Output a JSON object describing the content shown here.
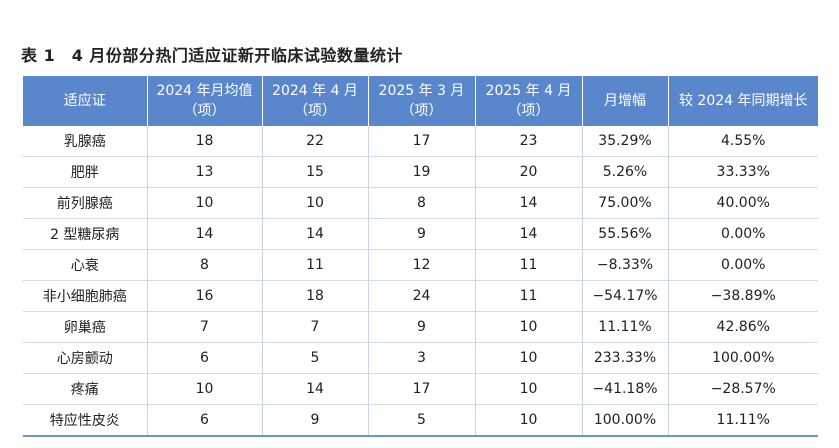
{
  "caption": "表 1　4 月份部分热门适应证新开临床试验数量统计",
  "table": {
    "headers": [
      {
        "line1": "适应证",
        "line2": ""
      },
      {
        "line1": "2024 年月均值",
        "line2": "（项）"
      },
      {
        "line1": "2024 年 4 月",
        "line2": "（项）"
      },
      {
        "line1": "2025 年 3 月",
        "line2": "（项）"
      },
      {
        "line1": "2025 年 4 月",
        "line2": "（项）"
      },
      {
        "line1": "月增幅",
        "line2": ""
      },
      {
        "line1": "较 2024 年同期增长",
        "line2": ""
      }
    ],
    "rows": [
      [
        "乳腺癌",
        "18",
        "22",
        "17",
        "23",
        "35.29%",
        "4.55%"
      ],
      [
        "肥胖",
        "13",
        "15",
        "19",
        "20",
        "5.26%",
        "33.33%"
      ],
      [
        "前列腺癌",
        "10",
        "10",
        "8",
        "14",
        "75.00%",
        "40.00%"
      ],
      [
        "2 型糖尿病",
        "14",
        "14",
        "9",
        "14",
        "55.56%",
        "0.00%"
      ],
      [
        "心衰",
        "8",
        "11",
        "12",
        "11",
        "−8.33%",
        "0.00%"
      ],
      [
        "非小细胞肺癌",
        "16",
        "18",
        "24",
        "11",
        "−54.17%",
        "−38.89%"
      ],
      [
        "卵巢癌",
        "7",
        "7",
        "9",
        "10",
        "11.11%",
        "42.86%"
      ],
      [
        "心房颤动",
        "6",
        "5",
        "3",
        "10",
        "233.33%",
        "100.00%"
      ],
      [
        "疼痛",
        "10",
        "14",
        "17",
        "10",
        "−41.18%",
        "−28.57%"
      ],
      [
        "特应性皮炎",
        "6",
        "9",
        "5",
        "10",
        "100.00%",
        "11.11%"
      ]
    ]
  },
  "colors": {
    "header_bg": "#5a86cc",
    "header_text": "#ffffff",
    "row_border": "#cfdcee"
  }
}
